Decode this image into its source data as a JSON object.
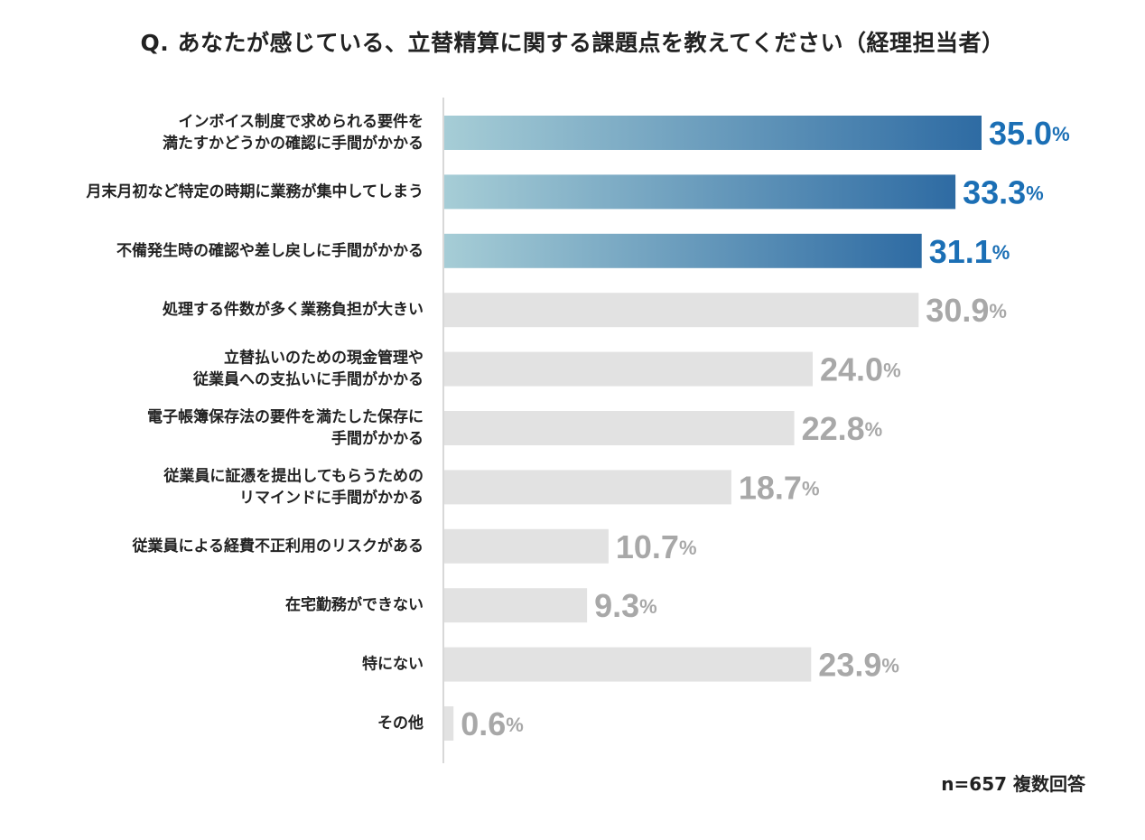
{
  "chart_data": {
    "type": "bar",
    "orientation": "horizontal",
    "title": "Q. あなたが感じている、立替精算に関する課題点を教えてください（経理担当者）",
    "categories": [
      [
        "インボイス制度で求められる要件を",
        "満たすかどうかの確認に手間がかかる"
      ],
      [
        "月末月初など特定の時期に業務が集中してしまう"
      ],
      [
        "不備発生時の確認や差し戻しに手間がかかる"
      ],
      [
        "処理する件数が多く業務負担が大きい"
      ],
      [
        "立替払いのための現金管理や",
        "従業員への支払いに手間がかかる"
      ],
      [
        "電子帳簿保存法の要件を満たした保存に",
        "手間がかかる"
      ],
      [
        "従業員に証憑を提出してもらうための",
        "リマインドに手間がかかる"
      ],
      [
        "従業員による経費不正利用のリスクがある"
      ],
      [
        "在宅勤務ができない"
      ],
      [
        "特にない"
      ],
      [
        "その他"
      ]
    ],
    "values": [
      35.0,
      33.3,
      31.1,
      30.9,
      24.0,
      22.8,
      18.7,
      10.7,
      9.3,
      23.9,
      0.6
    ],
    "value_labels": [
      "35.0",
      "33.3",
      "31.1",
      "30.9",
      "24.0",
      "22.8",
      "18.7",
      "10.7",
      "9.3",
      "23.9",
      "0.6"
    ],
    "unit": "%",
    "highlight_top_n": 3,
    "colors": {
      "highlight_start": "#a6cdd6",
      "highlight_end": "#2e6ba3",
      "highlight_label": "#1b6fb5",
      "bar_gray": "#e2e2e2",
      "label_gray": "#a8a8a8",
      "axis": "#cccccc",
      "text": "#222222"
    },
    "grid": false,
    "legend": "none",
    "note": "n=657 複数回答"
  }
}
